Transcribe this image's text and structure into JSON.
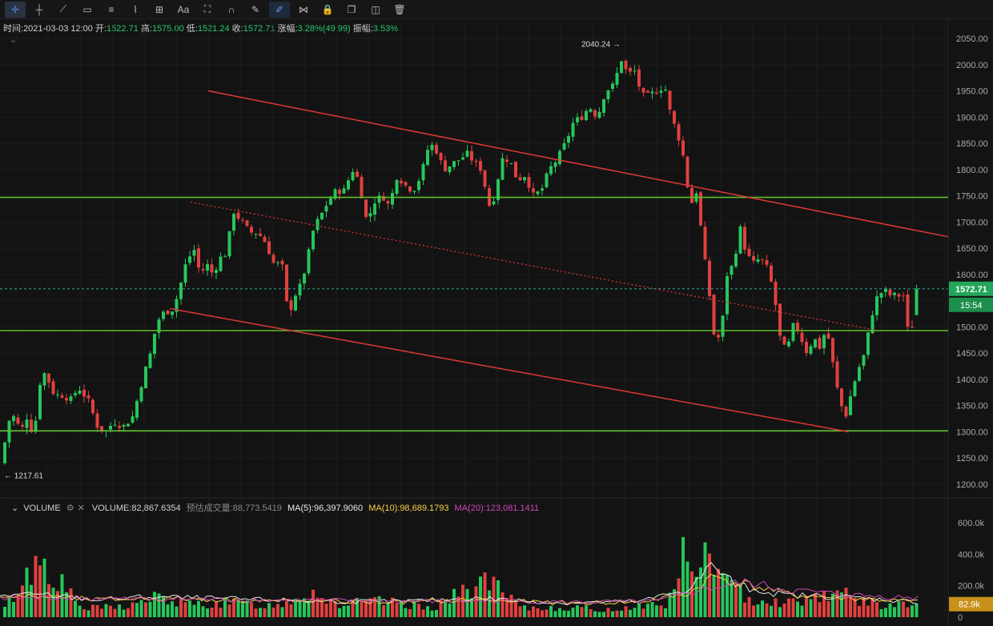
{
  "toolbar": {
    "tools": [
      {
        "name": "crosshair-icon",
        "glyph": "✛",
        "active": true
      },
      {
        "name": "horizontal-line-icon",
        "glyph": "┼"
      },
      {
        "name": "trend-line-icon",
        "glyph": "⟋"
      },
      {
        "name": "rectangle-icon",
        "glyph": "▭"
      },
      {
        "name": "parallel-lines-icon",
        "glyph": "≡"
      },
      {
        "name": "wave-pattern-icon",
        "glyph": "⌇"
      },
      {
        "name": "measure-icon",
        "glyph": "⊞"
      },
      {
        "name": "text-tool-icon",
        "glyph": "Aa"
      },
      {
        "name": "pattern-icon",
        "glyph": "⛶"
      },
      {
        "name": "magnet-icon",
        "glyph": "∩"
      },
      {
        "name": "ruler-icon",
        "glyph": "✎"
      },
      {
        "name": "lock-drawing-icon",
        "glyph": "✐",
        "selected": true
      },
      {
        "name": "visibility-icon",
        "glyph": "⋈"
      },
      {
        "name": "lock-icon",
        "glyph": "🔒"
      },
      {
        "name": "copy-icon",
        "glyph": "❐"
      },
      {
        "name": "hide-icon",
        "glyph": "◫"
      },
      {
        "name": "delete-icon",
        "glyph": "🗑"
      }
    ]
  },
  "info": {
    "time_label": "时间:",
    "time": "2021-03-03 12:00",
    "open_label": "开:",
    "open": "1522.71",
    "high_label": "高:",
    "high": "1575.00",
    "low_label": "低:",
    "low": "1521.24",
    "close_label": "收:",
    "close": "1572.71",
    "change_label": "涨幅:",
    "change": "3.28%(49.99)",
    "amp_label": "振幅:",
    "amp": "3.53%"
  },
  "volume_bar": {
    "title": "VOLUME",
    "volume_label": "VOLUME:",
    "volume": "82,867.6354",
    "est_label": "预估成交量:",
    "est": "88,773.5419",
    "ma5_label": "MA(5):",
    "ma5": "96,397.9060",
    "ma10_label": "MA(10):",
    "ma10": "98,689.1793",
    "ma20_label": "MA(20):",
    "ma20": "123,081.1411"
  },
  "chart_data": {
    "type": "candlestick",
    "price_axis": {
      "ticks": [
        1200,
        1250,
        1300,
        1350,
        1400,
        1450,
        1500,
        1550,
        1600,
        1650,
        1700,
        1750,
        1800,
        1850,
        1900,
        1950,
        2000,
        2050
      ],
      "labels": [
        "1200.00",
        "1250.00",
        "1300.00",
        "1350.00",
        "1400.00",
        "1450.00",
        "1500.00",
        "1550.00",
        "1600.00",
        "1650.00",
        "1700.00",
        "1750.00",
        "1800.00",
        "1850.00",
        "1900.00",
        "1950.00",
        "2000.00",
        "2050.00"
      ]
    },
    "volume_axis": {
      "ticks": [
        0,
        200000,
        400000,
        600000
      ],
      "labels": [
        "0",
        "200.0k",
        "400.0k",
        "600.0k"
      ]
    },
    "last_price": "1572.71",
    "countdown": "15:54",
    "last_volume": "82.9k",
    "high_marker": "2040.24",
    "low_marker": "1217.61",
    "horizontal_lines": [
      1747,
      1493,
      1302
    ],
    "colors": {
      "up": "#26c65b",
      "down": "#e0403f",
      "hline": "#5cbe2a",
      "trend": "#e03838",
      "bg": "#131313"
    },
    "anchors": [
      [
        0,
        1240
      ],
      [
        8,
        1320
      ],
      [
        16,
        1330
      ],
      [
        24,
        1300
      ],
      [
        32,
        1330
      ],
      [
        40,
        1290
      ],
      [
        50,
        1420
      ],
      [
        58,
        1400
      ],
      [
        66,
        1370
      ],
      [
        78,
        1370
      ],
      [
        86,
        1360
      ],
      [
        96,
        1385
      ],
      [
        108,
        1360
      ],
      [
        120,
        1310
      ],
      [
        130,
        1300
      ],
      [
        140,
        1320
      ],
      [
        152,
        1310
      ],
      [
        164,
        1330
      ],
      [
        176,
        1400
      ],
      [
        186,
        1450
      ],
      [
        194,
        1510
      ],
      [
        204,
        1530
      ],
      [
        212,
        1530
      ],
      [
        220,
        1560
      ],
      [
        230,
        1620
      ],
      [
        240,
        1650
      ],
      [
        248,
        1600
      ],
      [
        256,
        1620
      ],
      [
        264,
        1600
      ],
      [
        272,
        1630
      ],
      [
        280,
        1640
      ],
      [
        290,
        1720
      ],
      [
        300,
        1700
      ],
      [
        310,
        1680
      ],
      [
        320,
        1680
      ],
      [
        330,
        1660
      ],
      [
        340,
        1620
      ],
      [
        350,
        1620
      ],
      [
        358,
        1520
      ],
      [
        366,
        1560
      ],
      [
        374,
        1580
      ],
      [
        382,
        1630
      ],
      [
        390,
        1690
      ],
      [
        398,
        1710
      ],
      [
        408,
        1740
      ],
      [
        418,
        1760
      ],
      [
        428,
        1760
      ],
      [
        438,
        1800
      ],
      [
        446,
        1780
      ],
      [
        456,
        1700
      ],
      [
        466,
        1740
      ],
      [
        476,
        1750
      ],
      [
        484,
        1730
      ],
      [
        494,
        1790
      ],
      [
        504,
        1770
      ],
      [
        514,
        1760
      ],
      [
        524,
        1790
      ],
      [
        534,
        1850
      ],
      [
        542,
        1840
      ],
      [
        552,
        1800
      ],
      [
        562,
        1810
      ],
      [
        572,
        1820
      ],
      [
        582,
        1830
      ],
      [
        592,
        1810
      ],
      [
        600,
        1800
      ],
      [
        608,
        1730
      ],
      [
        616,
        1750
      ],
      [
        624,
        1820
      ],
      [
        634,
        1820
      ],
      [
        644,
        1780
      ],
      [
        654,
        1790
      ],
      [
        664,
        1750
      ],
      [
        674,
        1760
      ],
      [
        684,
        1800
      ],
      [
        694,
        1820
      ],
      [
        704,
        1850
      ],
      [
        714,
        1890
      ],
      [
        724,
        1900
      ],
      [
        734,
        1920
      ],
      [
        744,
        1900
      ],
      [
        754,
        1950
      ],
      [
        764,
        1960
      ],
      [
        774,
        2010
      ],
      [
        782,
        1980
      ],
      [
        790,
        1990
      ],
      [
        800,
        1940
      ],
      [
        808,
        1940
      ],
      [
        818,
        1950
      ],
      [
        828,
        1960
      ],
      [
        836,
        1900
      ],
      [
        844,
        1870
      ],
      [
        852,
        1820
      ],
      [
        860,
        1730
      ],
      [
        868,
        1760
      ],
      [
        876,
        1650
      ],
      [
        884,
        1560
      ],
      [
        890,
        1480
      ],
      [
        898,
        1480
      ],
      [
        906,
        1600
      ],
      [
        914,
        1620
      ],
      [
        922,
        1690
      ],
      [
        930,
        1640
      ],
      [
        938,
        1620
      ],
      [
        946,
        1630
      ],
      [
        954,
        1620
      ],
      [
        964,
        1570
      ],
      [
        972,
        1480
      ],
      [
        980,
        1450
      ],
      [
        990,
        1510
      ],
      [
        998,
        1480
      ],
      [
        1006,
        1450
      ],
      [
        1014,
        1480
      ],
      [
        1022,
        1460
      ],
      [
        1030,
        1500
      ],
      [
        1038,
        1430
      ],
      [
        1046,
        1360
      ],
      [
        1054,
        1330
      ],
      [
        1062,
        1380
      ],
      [
        1070,
        1420
      ],
      [
        1078,
        1450
      ],
      [
        1086,
        1520
      ],
      [
        1094,
        1560
      ],
      [
        1102,
        1570
      ],
      [
        1110,
        1560
      ],
      [
        1118,
        1560
      ],
      [
        1126,
        1560
      ],
      [
        1132,
        1490
      ],
      [
        1140,
        1510
      ],
      [
        1147,
        1572.71
      ]
    ],
    "volume_anchors": [
      [
        0,
        30000
      ],
      [
        48,
        420000
      ],
      [
        100,
        60000
      ],
      [
        160,
        80000
      ],
      [
        192,
        140000
      ],
      [
        230,
        90000
      ],
      [
        290,
        100000
      ],
      [
        340,
        80000
      ],
      [
        388,
        180000
      ],
      [
        420,
        90000
      ],
      [
        470,
        110000
      ],
      [
        540,
        70000
      ],
      [
        604,
        260000
      ],
      [
        650,
        60000
      ],
      [
        700,
        70000
      ],
      [
        760,
        50000
      ],
      [
        800,
        90000
      ],
      [
        830,
        80000
      ],
      [
        856,
        500000
      ],
      [
        870,
        200000
      ],
      [
        884,
        620000
      ],
      [
        892,
        300000
      ],
      [
        930,
        140000
      ],
      [
        980,
        100000
      ],
      [
        1040,
        180000
      ],
      [
        1090,
        90000
      ],
      [
        1147,
        82867
      ]
    ],
    "ma_lines": [
      {
        "name": "MA(5)",
        "color": "#e8e8e8",
        "anchors": [
          [
            0,
            140000
          ],
          [
            60,
            140000
          ],
          [
            120,
            110000
          ],
          [
            190,
            130000
          ],
          [
            250,
            120000
          ],
          [
            330,
            110000
          ],
          [
            420,
            100000
          ],
          [
            500,
            100000
          ],
          [
            600,
            120000
          ],
          [
            700,
            90000
          ],
          [
            800,
            100000
          ],
          [
            860,
            180000
          ],
          [
            890,
            330000
          ],
          [
            920,
            200000
          ],
          [
            980,
            140000
          ],
          [
            1050,
            130000
          ],
          [
            1147,
            96398
          ]
        ]
      },
      {
        "name": "MA(10)",
        "color": "#f5d142",
        "anchors": [
          [
            0,
            130000
          ],
          [
            60,
            130000
          ],
          [
            120,
            110000
          ],
          [
            190,
            120000
          ],
          [
            250,
            115000
          ],
          [
            330,
            105000
          ],
          [
            420,
            100000
          ],
          [
            500,
            95000
          ],
          [
            600,
            110000
          ],
          [
            700,
            90000
          ],
          [
            800,
            95000
          ],
          [
            860,
            150000
          ],
          [
            890,
            260000
          ],
          [
            930,
            210000
          ],
          [
            990,
            140000
          ],
          [
            1060,
            120000
          ],
          [
            1147,
            98689
          ]
        ]
      },
      {
        "name": "MA(20)",
        "color": "#d147b8",
        "anchors": [
          [
            0,
            120000
          ],
          [
            80,
            125000
          ],
          [
            150,
            115000
          ],
          [
            230,
            115000
          ],
          [
            330,
            110000
          ],
          [
            430,
            105000
          ],
          [
            520,
            100000
          ],
          [
            620,
            105000
          ],
          [
            720,
            95000
          ],
          [
            820,
            100000
          ],
          [
            880,
            180000
          ],
          [
            930,
            220000
          ],
          [
            990,
            170000
          ],
          [
            1060,
            140000
          ],
          [
            1147,
            123081
          ]
        ]
      }
    ]
  }
}
